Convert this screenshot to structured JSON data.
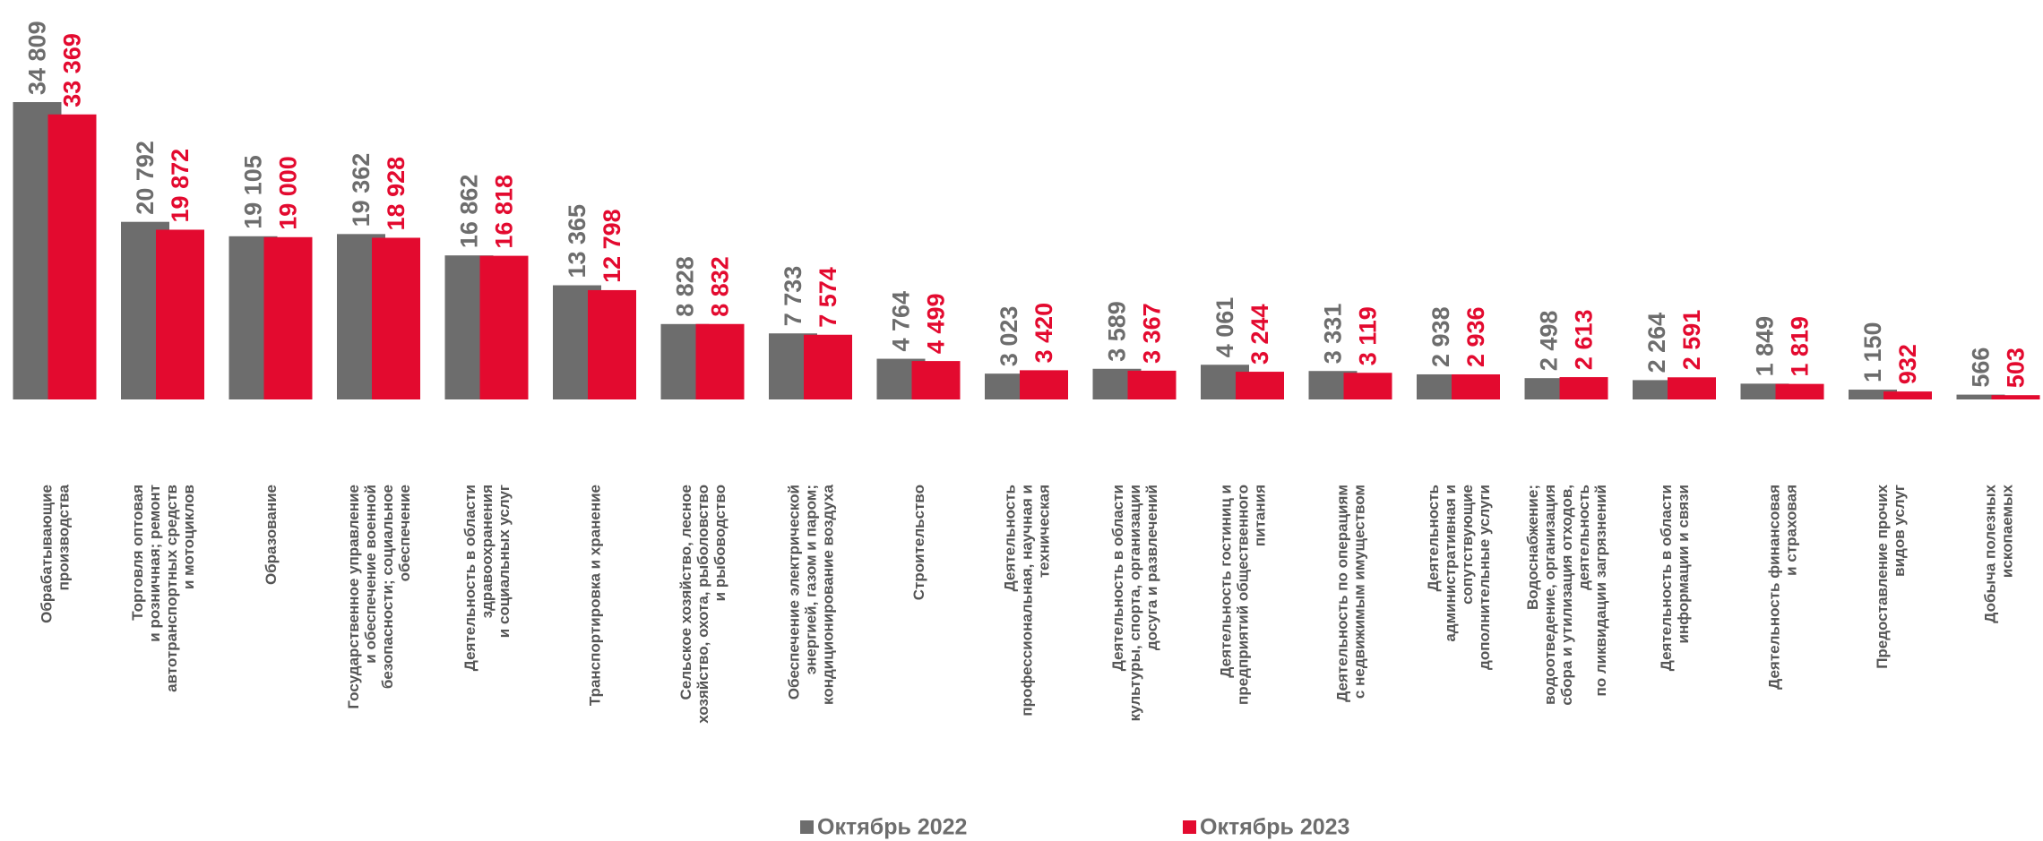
{
  "chart_data": {
    "type": "bar",
    "categories": [
      [
        "Обрабатывающие",
        "производства"
      ],
      [
        "Торговля оптовая",
        "и розничная; ремонт",
        "автотранспортных средств",
        "и мотоциклов"
      ],
      [
        "Образование"
      ],
      [
        "Государственное управление",
        "и обеспечение военной",
        "безопасности; социальное",
        "обеспечение"
      ],
      [
        "Деятельность в области",
        "здравоохранения",
        "и социальных услуг"
      ],
      [
        "Транспортировка и хранение"
      ],
      [
        "Сельское хозяйство, лесное",
        "хозяйство, охота, рыболовство",
        "и рыбоводство"
      ],
      [
        "Обеспечение электрической",
        "энергией, газом и паром;",
        "кондиционирование воздуха"
      ],
      [
        "Строительство"
      ],
      [
        "Деятельность",
        "профессиональная, научная и",
        "техническая"
      ],
      [
        "Деятельность в области",
        "культуры, спорта, организации",
        "досуга и развлечений"
      ],
      [
        "Деятельность гостиниц и",
        "предприятий общественного",
        "питания"
      ],
      [
        "Деятельность по операциям",
        "с недвижимым имуществом"
      ],
      [
        "Деятельность",
        "административная и",
        "сопутствующие",
        "дополнительные услуги"
      ],
      [
        "Водоснабжение;",
        "водоотведение, организация",
        "сбора и утилизация отходов,",
        "деятельность",
        "по ликвидации загрязнений"
      ],
      [
        "Деятельность в области",
        "информации и связи"
      ],
      [
        "Деятельность финансовая",
        "и страховая"
      ],
      [
        "Предоставление прочих",
        "видов услуг"
      ],
      [
        "Добыча полезных",
        "ископаемых"
      ]
    ],
    "series": [
      {
        "name": "Октябрь 2022",
        "color": "#6d6d6d",
        "values": [
          34809,
          20792,
          19105,
          19362,
          16862,
          13365,
          8828,
          7733,
          4764,
          3023,
          3589,
          4061,
          3331,
          2938,
          2498,
          2264,
          1849,
          1150,
          566
        ],
        "value_labels": [
          "34 809",
          "20 792",
          "19 105",
          "19 362",
          "16 862",
          "13 365",
          "8 828",
          "7 733",
          "4 764",
          "3 023",
          "3 589",
          "4 061",
          "3 331",
          "2 938",
          "2 498",
          "2 264",
          "1 849",
          "1 150",
          "566"
        ]
      },
      {
        "name": "Октябрь 2023",
        "color": "#e30a2f",
        "values": [
          33369,
          19872,
          19000,
          18928,
          16818,
          12798,
          8832,
          7574,
          4499,
          3420,
          3367,
          3244,
          3119,
          2936,
          2613,
          2591,
          1819,
          932,
          503
        ],
        "value_labels": [
          "33 369",
          "19 872",
          "19 000",
          "18 928",
          "16 818",
          "12 798",
          "8 832",
          "7 574",
          "4 499",
          "3 420",
          "3 367",
          "3 244",
          "3 119",
          "2 936",
          "2 613",
          "2 591",
          "1 819",
          "932",
          "503"
        ]
      }
    ]
  }
}
